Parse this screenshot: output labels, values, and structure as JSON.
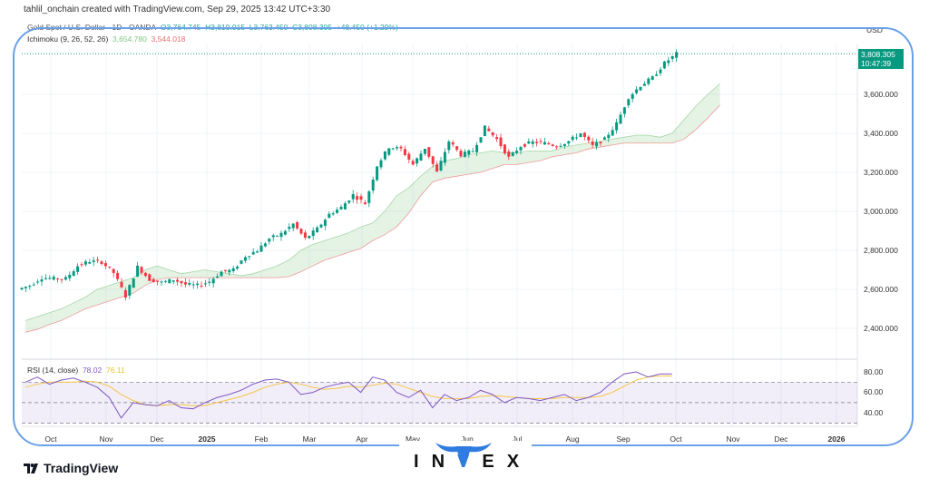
{
  "header": {
    "creator": "tahlil_onchain created with TradingView.com, Sep 29, 2025 13:42 UTC+3:30",
    "symbol": "Gold Spot / U.S. Dollar · 1D · OANDA",
    "ohlc": {
      "open": "O3,764.745",
      "high": "H3,819.915",
      "low": "L3,763.450",
      "close": "C3,808.305",
      "change": "+48.450 (+1.29%)"
    },
    "ichimoku": {
      "label": "Ichimoku (9, 26, 52, 26)",
      "value_a": "3,654.780",
      "value_b": "3,544.018"
    },
    "rsi": {
      "label": "RSI (14, close)",
      "value": "78.02",
      "signal": "76.11"
    }
  },
  "price_axis": {
    "currency": "USD",
    "labels": [
      "3,600.000",
      "3,400.000",
      "3,200.000",
      "3,000.000",
      "2,800.000",
      "2,600.000",
      "2,400.000"
    ],
    "last_price": "3,808.305",
    "countdown": "10:47:39",
    "rsi_labels": [
      "80.00",
      "60.00",
      "40.00"
    ]
  },
  "time_axis": {
    "labels": [
      "Oct",
      "Nov",
      "Dec",
      "2025",
      "Feb",
      "Mar",
      "Apr",
      "May",
      "Jun",
      "Jul",
      "Aug",
      "Sep",
      "Oct",
      "Nov",
      "Dec",
      "2026"
    ]
  },
  "branding": {
    "tradingview": "TradingView",
    "invex": "INVEX"
  },
  "colors": {
    "up": "#089981",
    "down": "#f23645",
    "cloud_up": "#a5d6a7",
    "cloud_down": "#ef9a9a",
    "rsi": "#7e57c2",
    "rsi_signal": "#f5c542",
    "frame": "#6aa0e8"
  },
  "chart_data": {
    "type": "candlestick",
    "interval": "weekly approximation of daily candles",
    "dates_start": "2024-09-16",
    "step_days": 7,
    "closes": [
      2620,
      2660,
      2655,
      2655,
      2720,
      2745,
      2740,
      2685,
      2565,
      2715,
      2650,
      2635,
      2650,
      2625,
      2620,
      2640,
      2690,
      2700,
      2770,
      2800,
      2860,
      2885,
      2935,
      2860,
      2910,
      2985,
      3020,
      3085,
      3040,
      3235,
      3330,
      3320,
      3240,
      3325,
      3200,
      3360,
      3290,
      3310,
      3430,
      3370,
      3275,
      3335,
      3355,
      3350,
      3335,
      3360,
      3400,
      3335,
      3370,
      3450,
      3585,
      3645,
      3685,
      3760,
      3808
    ],
    "ichimoku_span_a": [
      2440,
      2460,
      2480,
      2500,
      2530,
      2560,
      2600,
      2620,
      2640,
      2660,
      2700,
      2720,
      2700,
      2680,
      2690,
      2700,
      2690,
      2680,
      2670,
      2680,
      2700,
      2720,
      2750,
      2800,
      2830,
      2850,
      2870,
      2890,
      2920,
      2940,
      3000,
      3080,
      3120,
      3180,
      3230,
      3260,
      3270,
      3290,
      3300,
      3310,
      3300,
      3300,
      3310,
      3310,
      3310,
      3330,
      3340,
      3350,
      3360,
      3370,
      3380,
      3390,
      3390,
      3380,
      3400,
      3470,
      3540,
      3600,
      3655
    ],
    "ichimoku_span_b": [
      2380,
      2395,
      2420,
      2440,
      2470,
      2500,
      2520,
      2540,
      2560,
      2580,
      2620,
      2650,
      2660,
      2660,
      2660,
      2660,
      2660,
      2660,
      2660,
      2660,
      2660,
      2660,
      2665,
      2690,
      2720,
      2750,
      2770,
      2790,
      2810,
      2850,
      2880,
      2920,
      2990,
      3080,
      3150,
      3170,
      3180,
      3190,
      3200,
      3220,
      3240,
      3240,
      3250,
      3260,
      3280,
      3290,
      3300,
      3320,
      3330,
      3340,
      3350,
      3350,
      3350,
      3350,
      3350,
      3370,
      3420,
      3480,
      3545
    ],
    "rsi": [
      70,
      75,
      68,
      72,
      74,
      70,
      65,
      55,
      35,
      50,
      48,
      47,
      52,
      45,
      44,
      50,
      55,
      58,
      62,
      68,
      72,
      73,
      70,
      58,
      60,
      65,
      68,
      70,
      60,
      75,
      72,
      60,
      55,
      62,
      45,
      58,
      52,
      55,
      62,
      58,
      50,
      55,
      54,
      52,
      55,
      58,
      52,
      55,
      60,
      70,
      78,
      80,
      75,
      78,
      78
    ],
    "rsi_signal": [
      65,
      68,
      70,
      70,
      70,
      71,
      70,
      66,
      58,
      52,
      48,
      47,
      48,
      48,
      47,
      47,
      50,
      53,
      56,
      60,
      65,
      68,
      70,
      68,
      65,
      63,
      64,
      66,
      65,
      67,
      69,
      68,
      64,
      60,
      56,
      54,
      54,
      54,
      56,
      57,
      56,
      55,
      54,
      54,
      54,
      55,
      55,
      55,
      56,
      60,
      66,
      72,
      75,
      76,
      76
    ],
    "ylim": [
      2300,
      3900
    ],
    "rsi_levels": [
      70,
      50,
      30
    ]
  }
}
